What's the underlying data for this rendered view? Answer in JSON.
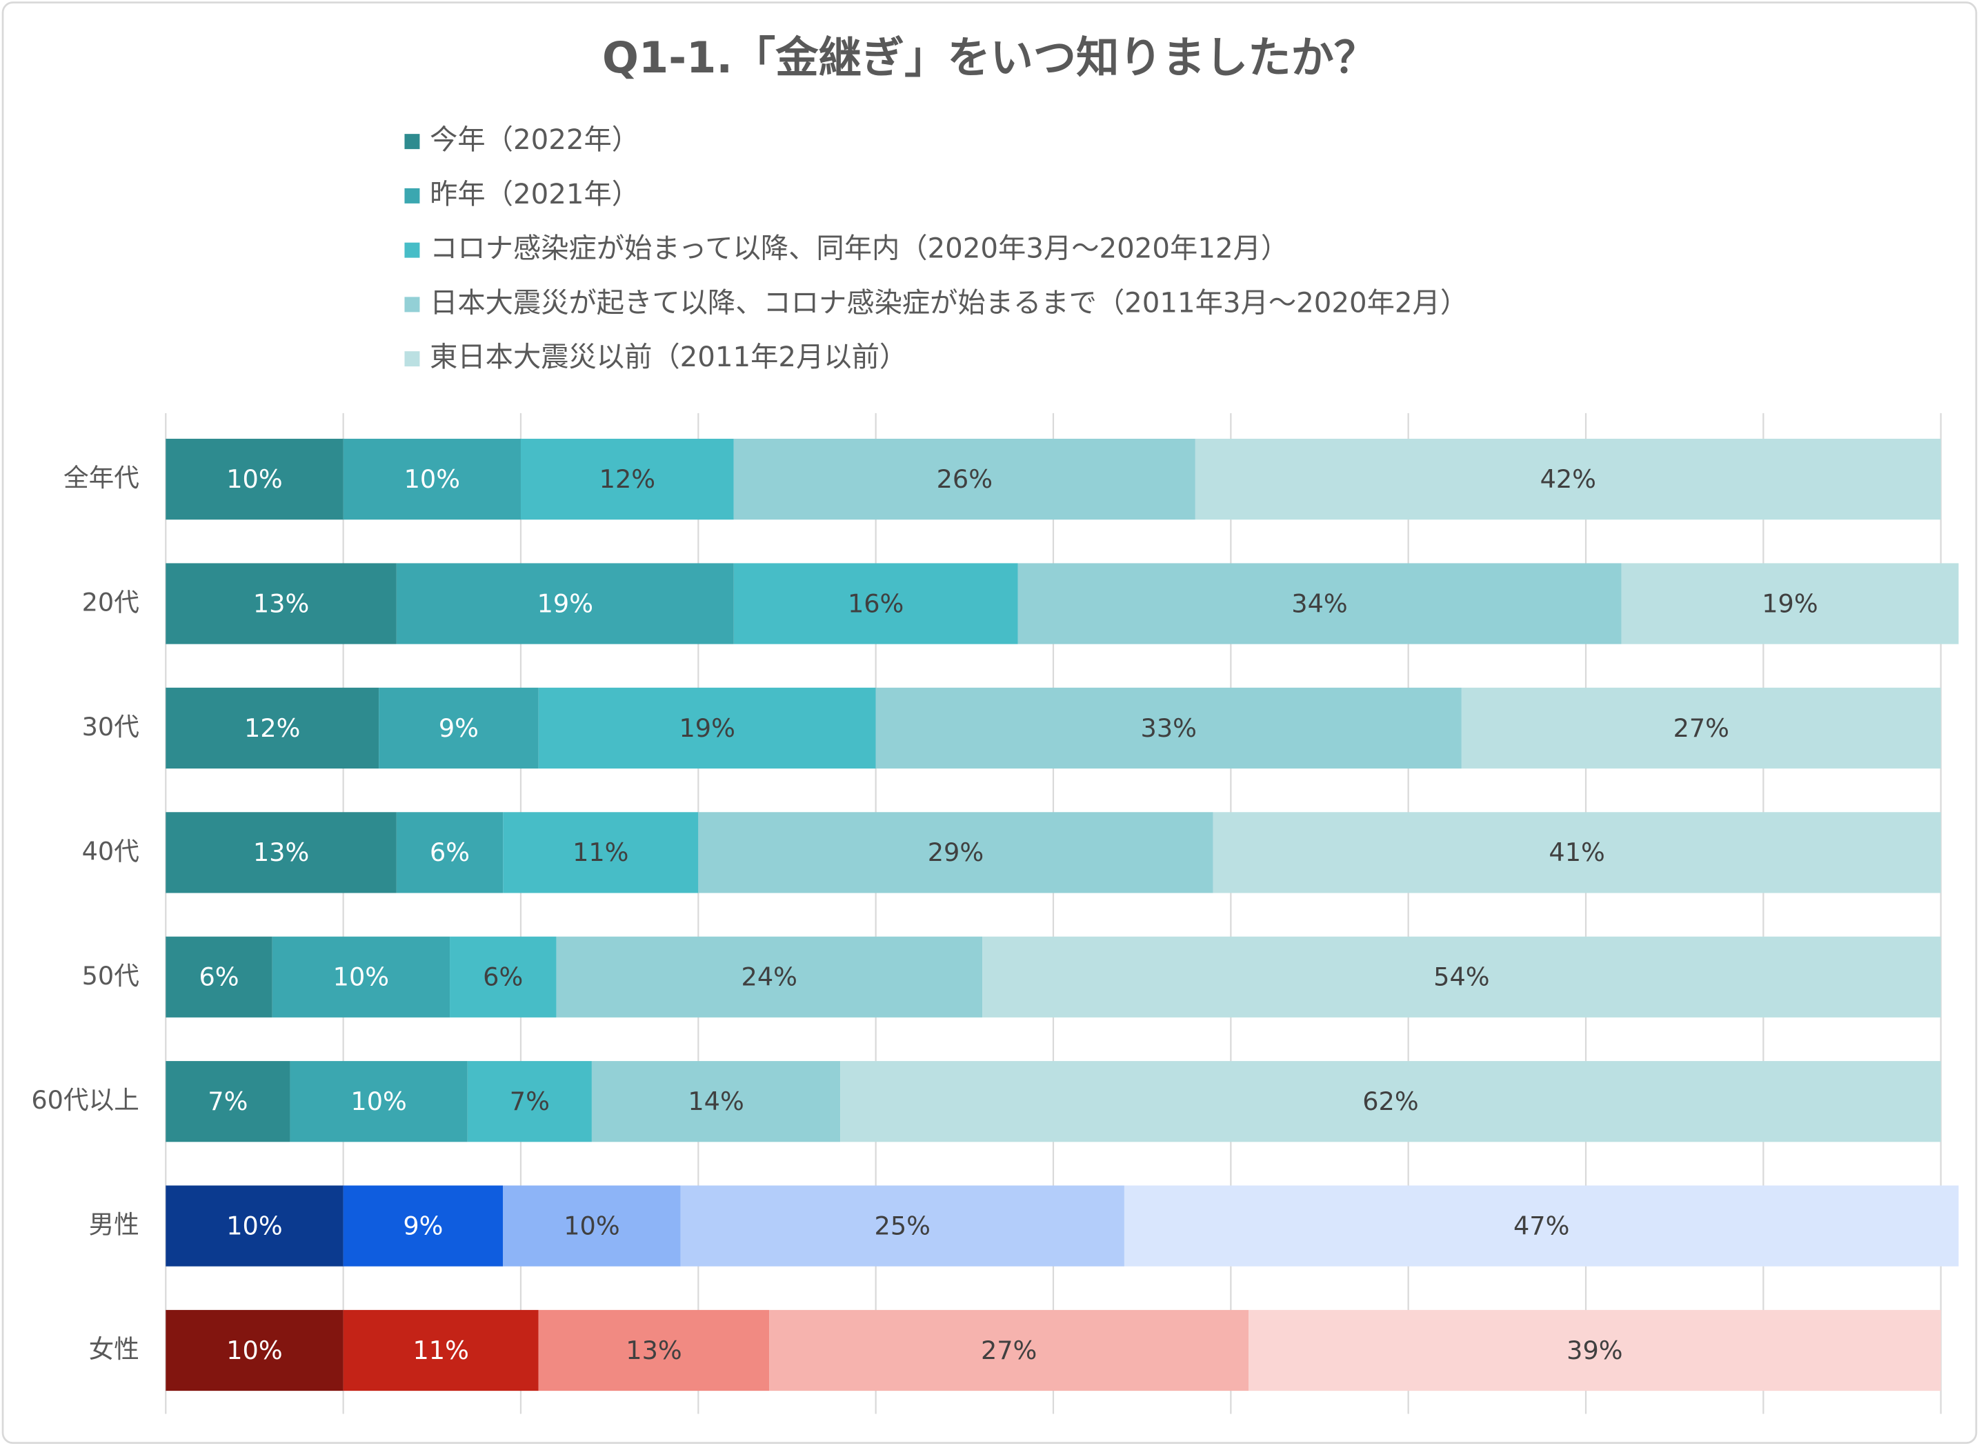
{
  "chart_data": {
    "type": "stacked_bar_horizontal",
    "title": "Q1-1.「金継ぎ」をいつ知りましたか？",
    "categories": [
      "全年代",
      "20代",
      "30代",
      "40代",
      "50代",
      "60代以上",
      "男性",
      "女性"
    ],
    "series": [
      {
        "name": "今年（2022年）",
        "color": "#2e8b8f",
        "colors": [
          "#2e8b8f",
          "#2e8b8f",
          "#2e8b8f",
          "#2e8b8f",
          "#2e8b8f",
          "#2e8b8f",
          "#0b3a8f",
          "#82150f"
        ],
        "values": [
          10,
          13,
          12,
          13,
          6,
          7,
          10,
          10
        ]
      },
      {
        "name": "昨年（2021年）",
        "color": "#3ba7b0",
        "colors": [
          "#3ba7b0",
          "#3ba7b0",
          "#3ba7b0",
          "#3ba7b0",
          "#3ba7b0",
          "#3ba7b0",
          "#0f5ddf",
          "#c42317"
        ],
        "values": [
          10,
          19,
          9,
          6,
          10,
          10,
          9,
          11
        ]
      },
      {
        "name": "コロナ感染症が始まって以降、同年内（2020年3月～2020年12月）",
        "color": "#47bdc7",
        "colors": [
          "#47bdc7",
          "#47bdc7",
          "#47bdc7",
          "#47bdc7",
          "#47bdc7",
          "#47bdc7",
          "#8db4f7",
          "#f18a82"
        ],
        "values": [
          12,
          16,
          19,
          11,
          6,
          7,
          10,
          13
        ]
      },
      {
        "name": "日本大震災が起きて以降、コロナ感染症が始まるまで（2011年3月～2020年2月）",
        "color": "#93d0d6",
        "colors": [
          "#93d0d6",
          "#93d0d6",
          "#93d0d6",
          "#93d0d6",
          "#93d0d6",
          "#93d0d6",
          "#b3cdfa",
          "#f6b3ae"
        ],
        "values": [
          26,
          34,
          33,
          29,
          24,
          14,
          25,
          27
        ]
      },
      {
        "name": "東日本大震災以前（2011年2月以前）",
        "color": "#bbe0e2",
        "colors": [
          "#bbe0e2",
          "#bbe0e2",
          "#bbe0e2",
          "#bbe0e2",
          "#bbe0e2",
          "#bbe0e2",
          "#d9e6fd",
          "#fad6d4"
        ],
        "values": [
          42,
          19,
          27,
          41,
          54,
          62,
          47,
          39
        ]
      }
    ],
    "value_labels": [
      [
        "10%",
        "13%",
        "12%",
        "13%",
        "6%",
        "7%",
        "10%",
        "10%"
      ],
      [
        "10%",
        "19%",
        "9%",
        "6%",
        "10%",
        "10%",
        "9%",
        "11%"
      ],
      [
        "12%",
        "16%",
        "19%",
        "11%",
        "6%",
        "7%",
        "10%",
        "13%"
      ],
      [
        "26%",
        "34%",
        "33%",
        "29%",
        "24%",
        "14%",
        "25%",
        "27%"
      ],
      [
        "42%",
        "19%",
        "27%",
        "41%",
        "54%",
        "62%",
        "47%",
        "39%"
      ]
    ],
    "xlim": [
      0,
      100
    ],
    "xticks": [
      0,
      10,
      20,
      30,
      40,
      50,
      60,
      70,
      80,
      90,
      100
    ],
    "grid": true
  }
}
